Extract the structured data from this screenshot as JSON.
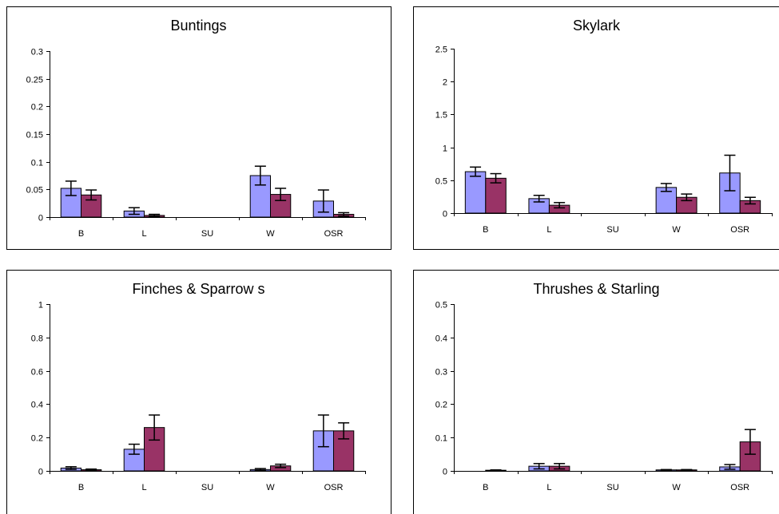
{
  "colors": {
    "series1": "#9999ff",
    "series2": "#993366",
    "border": "#000000"
  },
  "chart_data": [
    {
      "type": "bar",
      "title": "Buntings",
      "categories": [
        "B",
        "L",
        "SU",
        "W",
        "OSR"
      ],
      "ylim": [
        0,
        0.3
      ],
      "yticks": [
        "0",
        "0.05",
        "0.1",
        "0.15",
        "0.2",
        "0.25",
        "0.3"
      ],
      "series": [
        {
          "values": [
            0.052,
            0.011,
            0,
            0.075,
            0.029
          ],
          "errors": [
            0.013,
            0.006,
            0,
            0.017,
            0.02
          ]
        },
        {
          "values": [
            0.04,
            0.003,
            0,
            0.041,
            0.005
          ],
          "errors": [
            0.009,
            0.002,
            0,
            0.011,
            0.003
          ]
        }
      ],
      "grid": false,
      "legend": "none"
    },
    {
      "type": "bar",
      "title": "Skylark",
      "categories": [
        "B",
        "L",
        "SU",
        "W",
        "OSR"
      ],
      "ylim": [
        0,
        2.5
      ],
      "yticks": [
        "0",
        "0.5",
        "1",
        "1.5",
        "2",
        "2.5"
      ],
      "series": [
        {
          "values": [
            0.63,
            0.22,
            0,
            0.39,
            0.61
          ],
          "errors": [
            0.07,
            0.05,
            0,
            0.06,
            0.27
          ]
        },
        {
          "values": [
            0.53,
            0.12,
            0,
            0.24,
            0.19
          ],
          "errors": [
            0.07,
            0.04,
            0,
            0.05,
            0.05
          ]
        }
      ],
      "grid": false,
      "legend": "none"
    },
    {
      "type": "bar",
      "title": "Finches & Sparrow s",
      "categories": [
        "B",
        "L",
        "SU",
        "W",
        "OSR"
      ],
      "ylim": [
        0,
        1
      ],
      "yticks": [
        "0",
        "0.2",
        "0.4",
        "0.6",
        "0.8",
        "1"
      ],
      "series": [
        {
          "values": [
            0.017,
            0.13,
            0,
            0.008,
            0.24
          ],
          "errors": [
            0.008,
            0.03,
            0,
            0.006,
            0.095
          ]
        },
        {
          "values": [
            0.007,
            0.26,
            0,
            0.03,
            0.24
          ],
          "errors": [
            0.004,
            0.075,
            0,
            0.01,
            0.048
          ]
        }
      ],
      "grid": false,
      "legend": "none"
    },
    {
      "type": "bar",
      "title": "Thrushes & Starling",
      "categories": [
        "B",
        "L",
        "SU",
        "W",
        "OSR"
      ],
      "ylim": [
        0,
        0.5
      ],
      "yticks": [
        "0",
        "0.1",
        "0.2",
        "0.3",
        "0.4",
        "0.5"
      ],
      "series": [
        {
          "values": [
            0,
            0.014,
            0,
            0.003,
            0.012
          ],
          "errors": [
            0,
            0.008,
            0,
            0.001,
            0.007
          ]
        },
        {
          "values": [
            0.002,
            0.014,
            0,
            0.003,
            0.087
          ],
          "errors": [
            0.001,
            0.008,
            0,
            0.001,
            0.037
          ]
        }
      ],
      "grid": false,
      "legend": "none"
    }
  ]
}
